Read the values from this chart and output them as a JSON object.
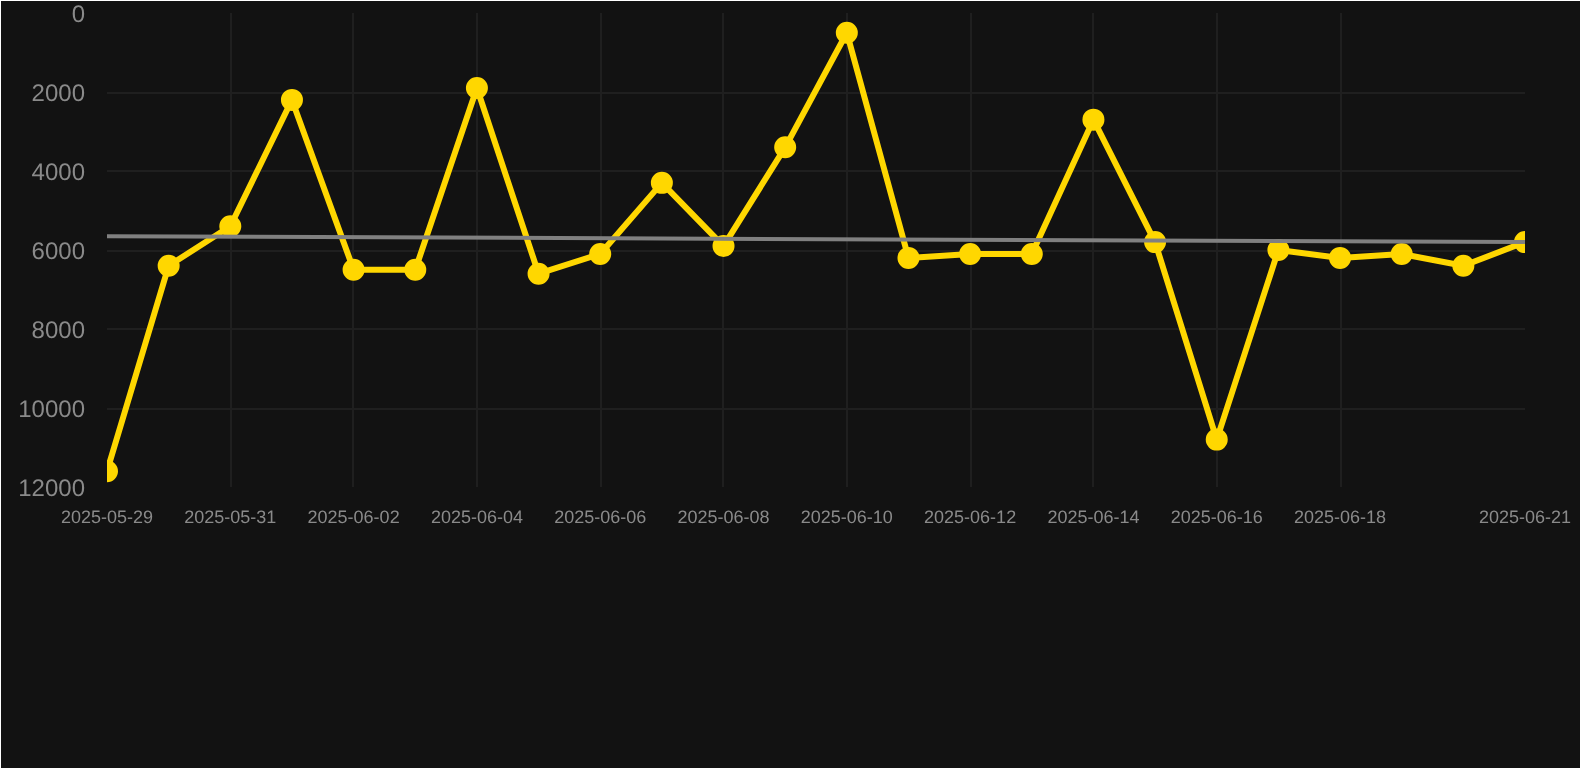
{
  "chart_data": {
    "type": "line",
    "x": [
      "2025-05-29",
      "2025-05-30",
      "2025-05-31",
      "2025-06-01",
      "2025-06-02",
      "2025-06-03",
      "2025-06-04",
      "2025-06-05",
      "2025-06-06",
      "2025-06-07",
      "2025-06-08",
      "2025-06-09",
      "2025-06-10",
      "2025-06-11",
      "2025-06-12",
      "2025-06-13",
      "2025-06-14",
      "2025-06-15",
      "2025-06-16",
      "2025-06-17",
      "2025-06-18",
      "2025-06-19",
      "2025-06-20",
      "2025-06-21"
    ],
    "series": [
      {
        "color": "#ffd700",
        "values": [
          11600,
          6400,
          5400,
          2200,
          6500,
          6500,
          1900,
          6600,
          6100,
          4300,
          5900,
          3400,
          500,
          6200,
          6100,
          6100,
          2700,
          5800,
          10800,
          6000,
          6200,
          6100,
          6400,
          5800
        ]
      },
      {
        "type": "line",
        "color": "#808080",
        "marker": "none",
        "x": [
          "2025-05-29",
          "2025-06-21"
        ],
        "values": [
          5650,
          5800
        ]
      }
    ],
    "marker": "circle",
    "line_style": "solid",
    "grid": true,
    "ylim": [
      12000,
      0
    ],
    "yticks": [
      0,
      2000,
      4000,
      6000,
      8000,
      10000,
      12000
    ],
    "xlim": [
      "2025-05-29",
      "2025-06-21"
    ],
    "xticks": [
      "2025-05-29",
      "2025-05-31",
      "2025-06-02",
      "2025-06-04",
      "2025-06-06",
      "2025-06-08",
      "2025-06-10",
      "2025-06-12",
      "2025-06-14",
      "2025-06-16",
      "2025-06-18",
      "2025-06-21"
    ]
  }
}
